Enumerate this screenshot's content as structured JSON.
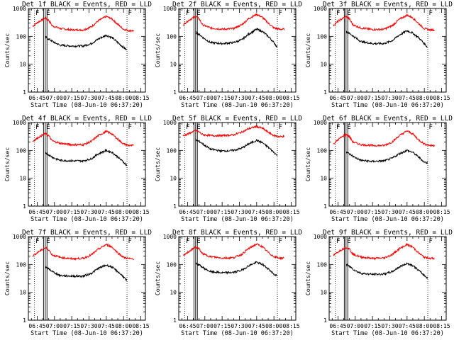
{
  "chart_data": [
    {
      "type": "line",
      "title": "Det 1f BLACK = Events, RED = LLD",
      "ylabel": "Counts/sec",
      "xlabel": "Start Time (08-Jun-10 06:37:20)",
      "yscale": "log",
      "ylim": [
        1,
        1000
      ],
      "xlim": [
        "06:37:20",
        "08:19:00"
      ],
      "x_ticks": [
        "06:45",
        "07:00",
        "07:15",
        "07:30",
        "07:45",
        "08:00",
        "08:15"
      ],
      "y_ticks": [
        "1",
        "10",
        "100",
        "1000"
      ],
      "markers": [
        "F",
        "E"
      ],
      "series": [
        {
          "name": "LLD",
          "color": "#ff0000",
          "x": [
            "06:41",
            "06:46",
            "06:52",
            "06:55",
            "06:58",
            "07:05",
            "07:15",
            "07:25",
            "07:32",
            "07:38",
            "07:45",
            "07:50",
            "07:55",
            "08:00",
            "08:05",
            "08:09"
          ],
          "values": [
            230,
            330,
            450,
            380,
            240,
            190,
            170,
            170,
            220,
            360,
            520,
            420,
            270,
            180,
            160,
            160
          ]
        },
        {
          "name": "Events",
          "color": "#000000",
          "x": [
            "06:52",
            "06:56",
            "07:00",
            "07:05",
            "07:15",
            "07:25",
            "07:32",
            "07:38",
            "07:45",
            "07:50",
            "07:55",
            "08:00",
            "08:03"
          ],
          "values": [
            95,
            75,
            60,
            48,
            45,
            45,
            55,
            80,
            110,
            90,
            60,
            40,
            32
          ]
        }
      ]
    },
    {
      "type": "line",
      "title": "Det 2f BLACK = Events, RED = LLD",
      "ylabel": "Counts/sec",
      "xlabel": "Start Time (08-Jun-10 06:37:20)",
      "yscale": "log",
      "ylim": [
        1,
        1000
      ],
      "xlim": [
        "06:37:20",
        "08:19:00"
      ],
      "x_ticks": [
        "06:45",
        "07:00",
        "07:15",
        "07:30",
        "07:45",
        "08:00",
        "08:15"
      ],
      "y_ticks": [
        "1",
        "10",
        "100",
        "1000"
      ],
      "markers": [
        "F",
        "E"
      ],
      "series": [
        {
          "name": "LLD",
          "color": "#ff0000",
          "x": [
            "06:41",
            "06:46",
            "06:52",
            "06:55",
            "06:58",
            "07:05",
            "07:15",
            "07:25",
            "07:32",
            "07:38",
            "07:45",
            "07:50",
            "07:55",
            "08:00",
            "08:05",
            "08:09"
          ],
          "values": [
            260,
            380,
            520,
            430,
            260,
            200,
            180,
            190,
            260,
            430,
            620,
            480,
            300,
            200,
            180,
            180
          ]
        },
        {
          "name": "Events",
          "color": "#000000",
          "x": [
            "06:52",
            "06:56",
            "07:00",
            "07:05",
            "07:15",
            "07:25",
            "07:32",
            "07:38",
            "07:45",
            "07:50",
            "07:55",
            "08:00",
            "08:03"
          ],
          "values": [
            140,
            110,
            80,
            60,
            55,
            60,
            75,
            120,
            180,
            150,
            100,
            60,
            40
          ]
        }
      ]
    },
    {
      "type": "line",
      "title": "Det 3f BLACK = Events, RED = LLD",
      "ylabel": "Counts/sec",
      "xlabel": "Start Time (08-Jun-10 06:37:20)",
      "yscale": "log",
      "ylim": [
        1,
        1000
      ],
      "xlim": [
        "06:37:20",
        "08:19:00"
      ],
      "x_ticks": [
        "06:45",
        "07:00",
        "07:15",
        "07:30",
        "07:45",
        "08:00",
        "08:15"
      ],
      "y_ticks": [
        "1",
        "10",
        "100",
        "1000"
      ],
      "markers": [
        "F",
        "E"
      ],
      "series": [
        {
          "name": "LLD",
          "color": "#ff0000",
          "x": [
            "06:41",
            "06:46",
            "06:52",
            "06:55",
            "06:58",
            "07:05",
            "07:15",
            "07:25",
            "07:32",
            "07:38",
            "07:45",
            "07:50",
            "07:55",
            "08:00",
            "08:05",
            "08:09"
          ],
          "values": [
            250,
            370,
            520,
            420,
            260,
            200,
            175,
            180,
            240,
            400,
            580,
            460,
            290,
            190,
            170,
            170
          ]
        },
        {
          "name": "Events",
          "color": "#000000",
          "x": [
            "06:52",
            "06:56",
            "07:00",
            "07:05",
            "07:15",
            "07:25",
            "07:32",
            "07:38",
            "07:45",
            "07:50",
            "07:55",
            "08:00",
            "08:03"
          ],
          "values": [
            150,
            120,
            90,
            65,
            55,
            55,
            70,
            110,
            160,
            130,
            90,
            55,
            40
          ]
        }
      ]
    },
    {
      "type": "line",
      "title": "Det 4f BLACK = Events, RED = LLD",
      "ylabel": "Counts/sec",
      "xlabel": "Start Time (08-Jun-10 06:37:20)",
      "yscale": "log",
      "ylim": [
        1,
        1000
      ],
      "xlim": [
        "06:37:20",
        "08:19:00"
      ],
      "x_ticks": [
        "06:45",
        "07:00",
        "07:15",
        "07:30",
        "07:45",
        "08:00",
        "08:15"
      ],
      "y_ticks": [
        "1",
        "10",
        "100",
        "1000"
      ],
      "markers": [
        "F",
        "E"
      ],
      "series": [
        {
          "name": "LLD",
          "color": "#ff0000",
          "x": [
            "06:41",
            "06:46",
            "06:52",
            "06:55",
            "06:58",
            "07:05",
            "07:15",
            "07:25",
            "07:32",
            "07:38",
            "07:45",
            "07:50",
            "07:55",
            "08:00",
            "08:05",
            "08:09"
          ],
          "values": [
            210,
            290,
            400,
            340,
            220,
            180,
            160,
            160,
            210,
            340,
            480,
            390,
            250,
            170,
            150,
            150
          ]
        },
        {
          "name": "Events",
          "color": "#000000",
          "x": [
            "06:52",
            "06:56",
            "07:00",
            "07:05",
            "07:15",
            "07:25",
            "07:32",
            "07:38",
            "07:45",
            "07:50",
            "07:55",
            "08:00",
            "08:03"
          ],
          "values": [
            85,
            65,
            52,
            44,
            42,
            42,
            50,
            75,
            100,
            85,
            58,
            38,
            28
          ]
        }
      ]
    },
    {
      "type": "line",
      "title": "Det 5f BLACK = Events, RED = LLD",
      "ylabel": "Counts/sec",
      "xlabel": "Start Time (08-Jun-10 06:37:20)",
      "yscale": "log",
      "ylim": [
        1,
        1000
      ],
      "xlim": [
        "06:37:20",
        "08:19:00"
      ],
      "x_ticks": [
        "06:45",
        "07:00",
        "07:15",
        "07:30",
        "07:45",
        "08:00",
        "08:15"
      ],
      "y_ticks": [
        "1",
        "10",
        "100",
        "1000"
      ],
      "markers": [
        "F",
        "E"
      ],
      "series": [
        {
          "name": "LLD",
          "color": "#ff0000",
          "x": [
            "06:41",
            "06:46",
            "06:52",
            "06:55",
            "06:58",
            "07:05",
            "07:15",
            "07:25",
            "07:32",
            "07:38",
            "07:45",
            "07:50",
            "07:55",
            "08:00",
            "08:05",
            "08:09"
          ],
          "values": [
            330,
            400,
            520,
            460,
            370,
            340,
            340,
            360,
            450,
            600,
            720,
            620,
            450,
            340,
            310,
            320
          ]
        },
        {
          "name": "Events",
          "color": "#000000",
          "x": [
            "06:52",
            "06:56",
            "07:00",
            "07:05",
            "07:15",
            "07:25",
            "07:32",
            "07:38",
            "07:45",
            "07:50",
            "07:55",
            "08:00",
            "08:03"
          ],
          "values": [
            240,
            200,
            150,
            110,
            95,
            100,
            120,
            170,
            230,
            190,
            130,
            85,
            65
          ]
        }
      ]
    },
    {
      "type": "line",
      "title": "Det 6f BLACK = Events, RED = LLD",
      "ylabel": "Counts/sec",
      "xlabel": "Start Time (08-Jun-10 06:37:20)",
      "yscale": "log",
      "ylim": [
        1,
        1000
      ],
      "xlim": [
        "06:37:20",
        "08:19:00"
      ],
      "x_ticks": [
        "06:45",
        "07:00",
        "07:15",
        "07:30",
        "07:45",
        "08:00",
        "08:15"
      ],
      "y_ticks": [
        "1",
        "10",
        "100",
        "1000"
      ],
      "markers": [
        "F",
        "E"
      ],
      "series": [
        {
          "name": "LLD",
          "color": "#ff0000",
          "x": [
            "06:41",
            "06:46",
            "06:52",
            "06:55",
            "06:58",
            "07:05",
            "07:15",
            "07:25",
            "07:32",
            "07:38",
            "07:45",
            "07:50",
            "07:55",
            "08:00",
            "08:05",
            "08:09"
          ],
          "values": [
            170,
            260,
            380,
            310,
            200,
            160,
            150,
            150,
            200,
            330,
            500,
            390,
            240,
            170,
            150,
            150
          ]
        },
        {
          "name": "Events",
          "color": "#000000",
          "x": [
            "06:52",
            "06:56",
            "07:00",
            "07:05",
            "07:15",
            "07:25",
            "07:32",
            "07:38",
            "07:45",
            "07:50",
            "07:55",
            "08:00",
            "08:03"
          ],
          "values": [
            90,
            70,
            55,
            44,
            40,
            42,
            52,
            75,
            100,
            85,
            58,
            38,
            35
          ]
        }
      ]
    },
    {
      "type": "line",
      "title": "Det 7f BLACK = Events, RED = LLD",
      "ylabel": "Counts/sec",
      "xlabel": "Start Time (08-Jun-10 06:37:20)",
      "yscale": "log",
      "ylim": [
        1,
        1000
      ],
      "xlim": [
        "06:37:20",
        "08:19:00"
      ],
      "x_ticks": [
        "06:45",
        "07:00",
        "07:15",
        "07:30",
        "07:45",
        "08:00",
        "08:15"
      ],
      "y_ticks": [
        "1",
        "10",
        "100",
        "1000"
      ],
      "markers": [
        "F",
        "E"
      ],
      "series": [
        {
          "name": "LLD",
          "color": "#ff0000",
          "x": [
            "06:41",
            "06:46",
            "06:52",
            "06:55",
            "06:58",
            "07:05",
            "07:15",
            "07:25",
            "07:32",
            "07:38",
            "07:45",
            "07:50",
            "07:55",
            "08:00",
            "08:05",
            "08:09"
          ],
          "values": [
            200,
            280,
            400,
            340,
            220,
            180,
            160,
            165,
            220,
            350,
            520,
            420,
            260,
            180,
            160,
            160
          ]
        },
        {
          "name": "Events",
          "color": "#000000",
          "x": [
            "06:52",
            "06:56",
            "07:00",
            "07:05",
            "07:15",
            "07:25",
            "07:32",
            "07:38",
            "07:45",
            "07:50",
            "07:55",
            "08:00",
            "08:03"
          ],
          "values": [
            80,
            65,
            50,
            40,
            38,
            38,
            48,
            72,
            95,
            80,
            55,
            36,
            25
          ]
        }
      ]
    },
    {
      "type": "line",
      "title": "Det 8f BLACK = Events, RED = LLD",
      "ylabel": "Counts/sec",
      "xlabel": "Start Time (08-Jun-10 06:37:20)",
      "yscale": "log",
      "ylim": [
        1,
        1000
      ],
      "xlim": [
        "06:37:20",
        "08:19:00"
      ],
      "x_ticks": [
        "06:45",
        "07:00",
        "07:15",
        "07:30",
        "07:45",
        "08:00",
        "08:15"
      ],
      "y_ticks": [
        "1",
        "10",
        "100",
        "1000"
      ],
      "markers": [
        "F",
        "E"
      ],
      "series": [
        {
          "name": "LLD",
          "color": "#ff0000",
          "x": [
            "06:41",
            "06:46",
            "06:52",
            "06:55",
            "06:58",
            "07:05",
            "07:15",
            "07:25",
            "07:32",
            "07:38",
            "07:45",
            "07:50",
            "07:55",
            "08:00",
            "08:05",
            "08:09"
          ],
          "values": [
            200,
            290,
            420,
            360,
            240,
            190,
            170,
            175,
            230,
            370,
            540,
            430,
            270,
            190,
            170,
            170
          ]
        },
        {
          "name": "Events",
          "color": "#000000",
          "x": [
            "06:52",
            "06:56",
            "07:00",
            "07:05",
            "07:15",
            "07:25",
            "07:32",
            "07:38",
            "07:45",
            "07:50",
            "07:55",
            "08:00",
            "08:03"
          ],
          "values": [
            110,
            90,
            70,
            55,
            50,
            52,
            62,
            90,
            120,
            100,
            70,
            45,
            38
          ]
        }
      ]
    },
    {
      "type": "line",
      "title": "Det 9f BLACK = Events, RED = LLD",
      "ylabel": "Counts/sec",
      "xlabel": "Start Time (08-Jun-10 06:37:20)",
      "yscale": "log",
      "ylim": [
        1,
        1000
      ],
      "xlim": [
        "06:37:20",
        "08:19:00"
      ],
      "x_ticks": [
        "06:45",
        "07:00",
        "07:15",
        "07:30",
        "07:45",
        "08:00",
        "08:15"
      ],
      "y_ticks": [
        "1",
        "10",
        "100",
        "1000"
      ],
      "markers": [
        "F",
        "E"
      ],
      "series": [
        {
          "name": "LLD",
          "color": "#ff0000",
          "x": [
            "06:41",
            "06:46",
            "06:52",
            "06:55",
            "06:58",
            "07:05",
            "07:15",
            "07:25",
            "07:32",
            "07:38",
            "07:45",
            "07:50",
            "07:55",
            "08:00",
            "08:05",
            "08:09"
          ],
          "values": [
            210,
            300,
            420,
            360,
            230,
            185,
            165,
            170,
            225,
            360,
            520,
            420,
            260,
            180,
            165,
            165
          ]
        },
        {
          "name": "Events",
          "color": "#000000",
          "x": [
            "06:52",
            "06:56",
            "07:00",
            "07:05",
            "07:15",
            "07:25",
            "07:32",
            "07:38",
            "07:45",
            "07:50",
            "07:55",
            "08:00",
            "08:03"
          ],
          "values": [
            100,
            80,
            60,
            48,
            44,
            45,
            55,
            80,
            110,
            92,
            62,
            40,
            32
          ]
        }
      ]
    }
  ]
}
